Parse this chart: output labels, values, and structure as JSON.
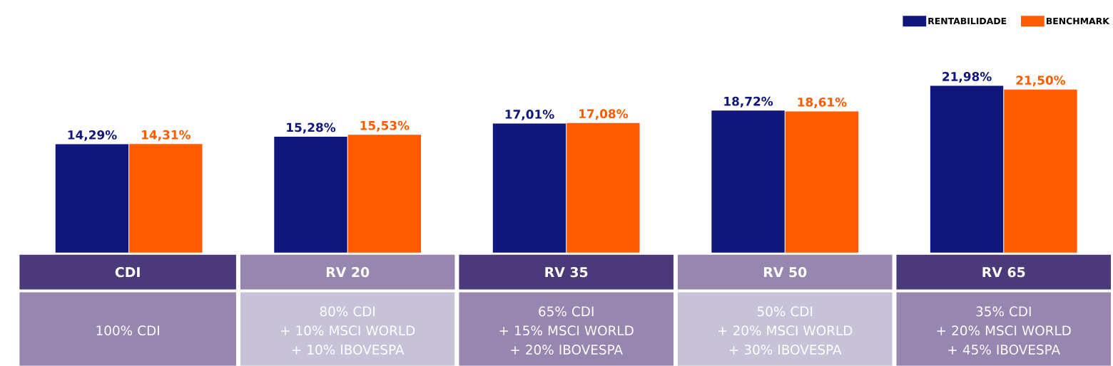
{
  "chart_data": {
    "type": "bar",
    "categories": [
      "CDI",
      "RV 20",
      "RV 35",
      "RV 50",
      "RV 65"
    ],
    "series": [
      {
        "name": "RENTABILIDADE",
        "color": "#10167a",
        "values": [
          14.29,
          15.28,
          17.01,
          18.72,
          21.98
        ],
        "value_labels": [
          "14,29%",
          "15,28%",
          "17,01%",
          "18,72%",
          "21,98%"
        ]
      },
      {
        "name": "BENCHMARK",
        "color": "#ff5b00",
        "values": [
          14.31,
          15.53,
          17.08,
          18.61,
          21.5
        ],
        "value_labels": [
          "14,31%",
          "15,53%",
          "17,08%",
          "18,61%",
          "21,50%"
        ]
      }
    ],
    "annotations": [
      "100% CDI",
      "80% CDI\n+ 10% MSCI WORLD\n+ 10% IBOVESPA",
      "65% CDI\n+ 15% MSCI WORLD\n+ 20% IBOVESPA",
      "50% CDI\n+ 20% MSCI WORLD\n+ 30% IBOVESPA",
      "35% CDI\n+ 20% MSCI WORLD\n+ 45% IBOVESPA"
    ],
    "legend": "top right"
  }
}
